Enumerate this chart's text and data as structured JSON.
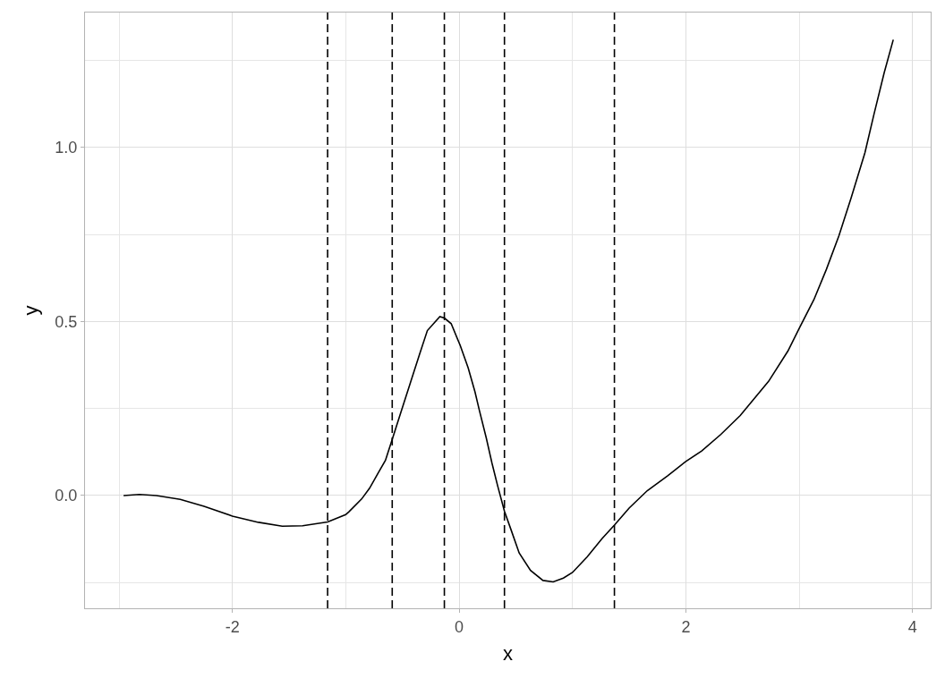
{
  "chart_data": {
    "type": "line",
    "xlabel": "x",
    "ylabel": "y",
    "x": [
      -2.96,
      -2.82,
      -2.67,
      -2.46,
      -2.25,
      -2.0,
      -1.77,
      -1.56,
      -1.38,
      -1.16,
      -1.0,
      -0.97,
      -0.86,
      -0.79,
      -0.71,
      -0.65,
      -0.59,
      -0.51,
      -0.43,
      -0.35,
      -0.28,
      -0.17,
      -0.13,
      -0.07,
      0.01,
      0.08,
      0.14,
      0.18,
      0.24,
      0.29,
      0.34,
      0.4,
      0.46,
      0.53,
      0.63,
      0.74,
      0.83,
      0.92,
      1.0,
      1.13,
      1.26,
      1.37,
      1.5,
      1.66,
      1.84,
      2.0,
      2.14,
      2.31,
      2.48,
      2.73,
      2.9,
      3.0,
      3.13,
      3.24,
      3.35,
      3.46,
      3.58,
      3.66,
      3.75,
      3.83
    ],
    "series": [
      {
        "color": "#000000",
        "values": [
          0.0,
          0.003,
          0.0,
          -0.011,
          -0.031,
          -0.059,
          -0.077,
          -0.088,
          -0.087,
          -0.076,
          -0.055,
          -0.046,
          -0.01,
          0.021,
          0.067,
          0.101,
          0.161,
          0.243,
          0.324,
          0.405,
          0.474,
          0.514,
          0.51,
          0.494,
          0.431,
          0.367,
          0.298,
          0.243,
          0.165,
          0.093,
          0.028,
          -0.045,
          -0.1,
          -0.165,
          -0.215,
          -0.244,
          -0.248,
          -0.237,
          -0.221,
          -0.176,
          -0.124,
          -0.085,
          -0.036,
          0.014,
          0.057,
          0.098,
          0.128,
          0.176,
          0.23,
          0.328,
          0.415,
          0.48,
          0.563,
          0.65,
          0.746,
          0.857,
          0.985,
          1.096,
          1.215,
          1.31
        ]
      }
    ],
    "xlim": [
      -3.3,
      4.16
    ],
    "ylim": [
      -0.324,
      1.388
    ],
    "xticks": [
      {
        "value": -3,
        "label": null
      },
      -2,
      {
        "value": -1,
        "label": null
      },
      0,
      {
        "value": 1,
        "label": null
      },
      2,
      {
        "value": 3,
        "label": null
      },
      4
    ],
    "yticks": [
      {
        "value": -0.25,
        "label": null
      },
      {
        "value": 0,
        "label": "0.0"
      },
      {
        "value": 0.25,
        "label": null
      },
      {
        "value": 0.5,
        "label": "0.5"
      },
      {
        "value": 0.75,
        "label": null
      },
      {
        "value": 1,
        "label": "1.0"
      },
      {
        "value": 1.25,
        "label": null
      }
    ],
    "ref_lines": [
      {
        "axis": "x",
        "value": -1.16,
        "color": "#000000",
        "line_style": "dashed"
      },
      {
        "axis": "x",
        "value": -0.59,
        "color": "#000000",
        "line_style": "dashed"
      },
      {
        "axis": "x",
        "value": -0.13,
        "color": "#000000",
        "line_style": "dashed"
      },
      {
        "axis": "x",
        "value": 0.4,
        "color": "#000000",
        "line_style": "dashed"
      },
      {
        "axis": "x",
        "value": 1.37,
        "color": "#000000",
        "line_style": "dashed"
      }
    ],
    "grid": true,
    "marker": "none",
    "line_style": "solid"
  }
}
